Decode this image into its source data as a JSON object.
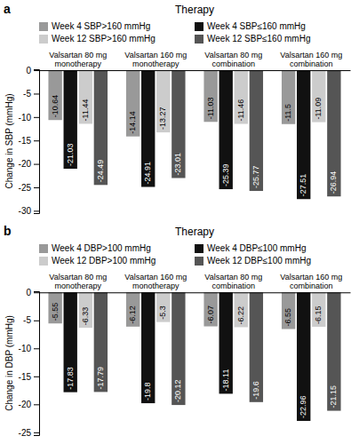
{
  "chart_data": [
    {
      "type": "bar",
      "title": "Therapy",
      "ylabel": "Change in SBP (mmHg)",
      "annotations": [
        "a"
      ],
      "categories": [
        "Valsartan 80 mg\nmonotherapy",
        "Valsartan 160 mg\nmonotherapy",
        "Valsartan 80 mg\ncombination",
        "Valsartan 160 mg\ncombination"
      ],
      "series": [
        {
          "name": "Week 4 SBP>160 mmHg",
          "color": "#999999",
          "values": [
            -10.64,
            -14.14,
            -11.03,
            -11.5
          ]
        },
        {
          "name": "Week 4 SBP≤160 mmHg",
          "color": "#111111",
          "values": [
            -21.03,
            -24.91,
            -25.39,
            -27.51
          ]
        },
        {
          "name": "Week 12 SBP>160 mmHg",
          "color": "#cccccc",
          "values": [
            -11.44,
            -13.27,
            -11.46,
            -11.09
          ]
        },
        {
          "name": "Week 12 SBP≤160 mmHg",
          "color": "#555555",
          "values": [
            -24.49,
            -23.01,
            -25.77,
            -26.94
          ]
        }
      ],
      "ylim": [
        -30.5,
        0.2
      ],
      "yticks": [
        0,
        -5,
        -10,
        -15,
        -20,
        -25,
        -30
      ],
      "grid": false,
      "legend": "top",
      "data_labels": true
    },
    {
      "type": "bar",
      "title": "Therapy",
      "ylabel": "Change in DBP (mmHg)",
      "annotations": [
        "b"
      ],
      "categories": [
        "Valsartan 80 mg\nmonotherapy",
        "Valsartan 160 mg\nmonotherapy",
        "Valsartan 80 mg\ncombination",
        "Valsartan 160 mg\ncombination"
      ],
      "series": [
        {
          "name": "Week 4 DBP>100 mmHg",
          "color": "#999999",
          "values": [
            -5.55,
            -6.12,
            -6.07,
            -6.55
          ]
        },
        {
          "name": "Week 4 DBP≤100 mmHg",
          "color": "#111111",
          "values": [
            -17.83,
            -19.8,
            -18.11,
            -22.96
          ]
        },
        {
          "name": "Week 12 DBP>100 mmHg",
          "color": "#cccccc",
          "values": [
            -6.33,
            -5.3,
            -6.22,
            -6.15
          ]
        },
        {
          "name": "Week 12 DBP≤100 mmHg",
          "color": "#555555",
          "values": [
            -17.79,
            -20.12,
            -19.6,
            -21.15
          ]
        }
      ],
      "ylim": [
        -25.5,
        0.2
      ],
      "yticks": [
        0,
        -5,
        -10,
        -15,
        -20,
        -25
      ],
      "grid": false,
      "legend": "top",
      "data_labels": true
    }
  ]
}
